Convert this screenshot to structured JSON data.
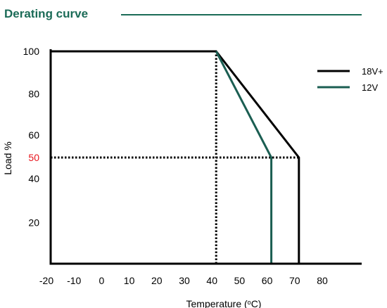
{
  "header": {
    "title": "Derating curve"
  },
  "chart_data": {
    "type": "line",
    "title": "Derating curve",
    "xlabel": "Temperature (°C)",
    "xlabel_parts": {
      "before": "Temperature (",
      "sup": "o",
      "after": "C)"
    },
    "ylabel": "Load %",
    "x_ticks": [
      -20,
      -10,
      0,
      10,
      20,
      30,
      40,
      50,
      60,
      70,
      80
    ],
    "x_tick_labels": [
      "-20",
      "-10",
      "0",
      "10",
      "20",
      "30",
      "40",
      "50",
      "60",
      "70",
      "80"
    ],
    "y_ticks": [
      20,
      40,
      50,
      60,
      80,
      100
    ],
    "y_tick_labels": [
      "20",
      "40",
      "50",
      "60",
      "80",
      "100"
    ],
    "highlight_tick": {
      "value": 50,
      "color": "#e8141c"
    },
    "xlim": [
      -20,
      90
    ],
    "ylim": [
      0,
      100
    ],
    "grid": false,
    "legend_position": "top-right",
    "series": [
      {
        "name": "18V+",
        "color": "#000000",
        "x": [
          -20,
          40,
          70,
          70
        ],
        "y": [
          100,
          100,
          50,
          0
        ]
      },
      {
        "name": "12V",
        "color": "#1b5e52",
        "x": [
          40,
          60,
          60
        ],
        "y": [
          100,
          50,
          0
        ]
      }
    ],
    "reference_lines": [
      {
        "orientation": "vertical",
        "x": 40,
        "y_from": 0,
        "y_to": 100,
        "style": "dotted"
      },
      {
        "orientation": "horizontal",
        "y": 50,
        "x_from": -20,
        "x_to": 70,
        "style": "dotted"
      }
    ]
  },
  "colors": {
    "title": "#1b6b57",
    "axis": "#000000",
    "title_rule": "#1b6b57"
  }
}
